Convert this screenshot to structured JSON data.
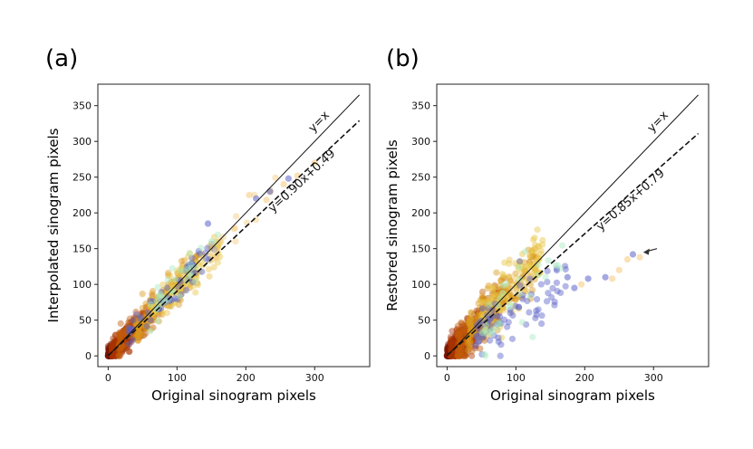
{
  "panels": [
    {
      "label": "(a)",
      "chart_data": {
        "type": "scatter",
        "title": "",
        "xlabel": "Original sinogram pixels",
        "ylabel": "Interpolated sinogram pixels",
        "xlim": [
          -15,
          380
        ],
        "ylim": [
          -15,
          380
        ],
        "xticks": [
          0,
          100,
          200,
          300
        ],
        "yticks": [
          0,
          50,
          100,
          150,
          200,
          250,
          300,
          350
        ],
        "lines": [
          {
            "label": "y=x",
            "slope": 1.0,
            "intercept": 0.0,
            "style": "solid",
            "x_range": [
              0,
              365
            ]
          },
          {
            "label": "y=0.90x+0.49",
            "slope": 0.9,
            "intercept": 0.49,
            "style": "dashed",
            "x_range": [
              0,
              365
            ]
          }
        ],
        "point_clusters": [
          {
            "color": "#7a1500",
            "x_range": [
              0,
              28
            ],
            "slope": 0.92,
            "spread": 5,
            "count": 320
          },
          {
            "color": "#a83400",
            "x_range": [
              5,
              55
            ],
            "slope": 0.95,
            "spread": 8,
            "count": 220
          },
          {
            "color": "#c25a0a",
            "x_range": [
              15,
              75
            ],
            "slope": 0.97,
            "spread": 9,
            "count": 150
          },
          {
            "color": "#d99a1c",
            "x_range": [
              40,
              130
            ],
            "slope": 0.98,
            "spread": 12,
            "count": 170
          },
          {
            "color": "#e8c547",
            "x_range": [
              60,
              165
            ],
            "slope": 0.97,
            "spread": 12,
            "count": 120
          },
          {
            "color": "#5b62c8",
            "x_range": [
              30,
              155
            ],
            "slope": 0.95,
            "spread": 12,
            "count": 60
          },
          {
            "color": "#a8e8c0",
            "x_range": [
              60,
              175
            ],
            "slope": 0.98,
            "spread": 14,
            "count": 35
          },
          {
            "color": "#f5c97a",
            "x_range": [
              150,
              250
            ],
            "slope": 0.97,
            "spread": 12,
            "count": 18
          }
        ],
        "outliers": [
          {
            "x": 205,
            "y": 225,
            "color": "#f5c97a"
          },
          {
            "x": 215,
            "y": 220,
            "color": "#5b62c8"
          },
          {
            "x": 235,
            "y": 230,
            "color": "#5b62c8"
          },
          {
            "x": 230,
            "y": 218,
            "color": "#f5c97a"
          },
          {
            "x": 255,
            "y": 240,
            "color": "#f5c97a"
          },
          {
            "x": 275,
            "y": 252,
            "color": "#f5c97a"
          },
          {
            "x": 262,
            "y": 248,
            "color": "#5b62c8"
          },
          {
            "x": 300,
            "y": 270,
            "color": "#f5c97a"
          },
          {
            "x": 150,
            "y": 160,
            "color": "#a8e8c0"
          },
          {
            "x": 145,
            "y": 185,
            "color": "#5b62c8"
          }
        ]
      }
    },
    {
      "label": "(b)",
      "chart_data": {
        "type": "scatter",
        "title": "",
        "xlabel": "Original sinogram pixels",
        "ylabel": "Restored sinogram pixels",
        "xlim": [
          -15,
          380
        ],
        "ylim": [
          -15,
          380
        ],
        "xticks": [
          0,
          100,
          200,
          300
        ],
        "yticks": [
          0,
          50,
          100,
          150,
          200,
          250,
          300,
          350
        ],
        "lines": [
          {
            "label": "y=x",
            "slope": 1.0,
            "intercept": 0.0,
            "style": "solid",
            "x_range": [
              0,
              365
            ]
          },
          {
            "label": "y=0.85x+0.79",
            "slope": 0.85,
            "intercept": 0.79,
            "style": "dashed",
            "x_range": [
              0,
              365
            ]
          }
        ],
        "point_clusters": [
          {
            "color": "#7a1500",
            "x_range": [
              0,
              30
            ],
            "slope": 0.95,
            "spread": 7,
            "count": 320
          },
          {
            "color": "#a83400",
            "x_range": [
              5,
              60
            ],
            "slope": 0.95,
            "spread": 12,
            "count": 220
          },
          {
            "color": "#c25a0a",
            "x_range": [
              15,
              85
            ],
            "slope": 0.95,
            "spread": 15,
            "count": 150
          },
          {
            "color": "#d99a1c",
            "x_range": [
              30,
              130
            ],
            "slope": 1.0,
            "spread": 18,
            "count": 170
          },
          {
            "color": "#e8c547",
            "x_range": [
              50,
              140
            ],
            "slope": 1.0,
            "spread": 18,
            "count": 120
          },
          {
            "color": "#5b62c8",
            "x_range": [
              40,
              175
            ],
            "slope": 0.6,
            "spread": 22,
            "count": 80
          },
          {
            "color": "#a8e8c0",
            "x_range": [
              50,
              170
            ],
            "slope": 0.8,
            "spread": 22,
            "count": 35
          }
        ],
        "outliers": [
          {
            "x": 230,
            "y": 110,
            "color": "#5b62c8"
          },
          {
            "x": 240,
            "y": 108,
            "color": "#f5c97a"
          },
          {
            "x": 250,
            "y": 120,
            "color": "#f5c97a"
          },
          {
            "x": 262,
            "y": 135,
            "color": "#f5c97a"
          },
          {
            "x": 270,
            "y": 142,
            "color": "#5b62c8"
          },
          {
            "x": 280,
            "y": 138,
            "color": "#f5c97a"
          },
          {
            "x": 205,
            "y": 108,
            "color": "#5b62c8"
          },
          {
            "x": 195,
            "y": 100,
            "color": "#f5c97a"
          },
          {
            "x": 185,
            "y": 95,
            "color": "#5b62c8"
          },
          {
            "x": 175,
            "y": 110,
            "color": "#5b62c8"
          }
        ],
        "arrow": {
          "from": [
            305,
            150
          ],
          "to": [
            285,
            145
          ]
        }
      }
    }
  ]
}
